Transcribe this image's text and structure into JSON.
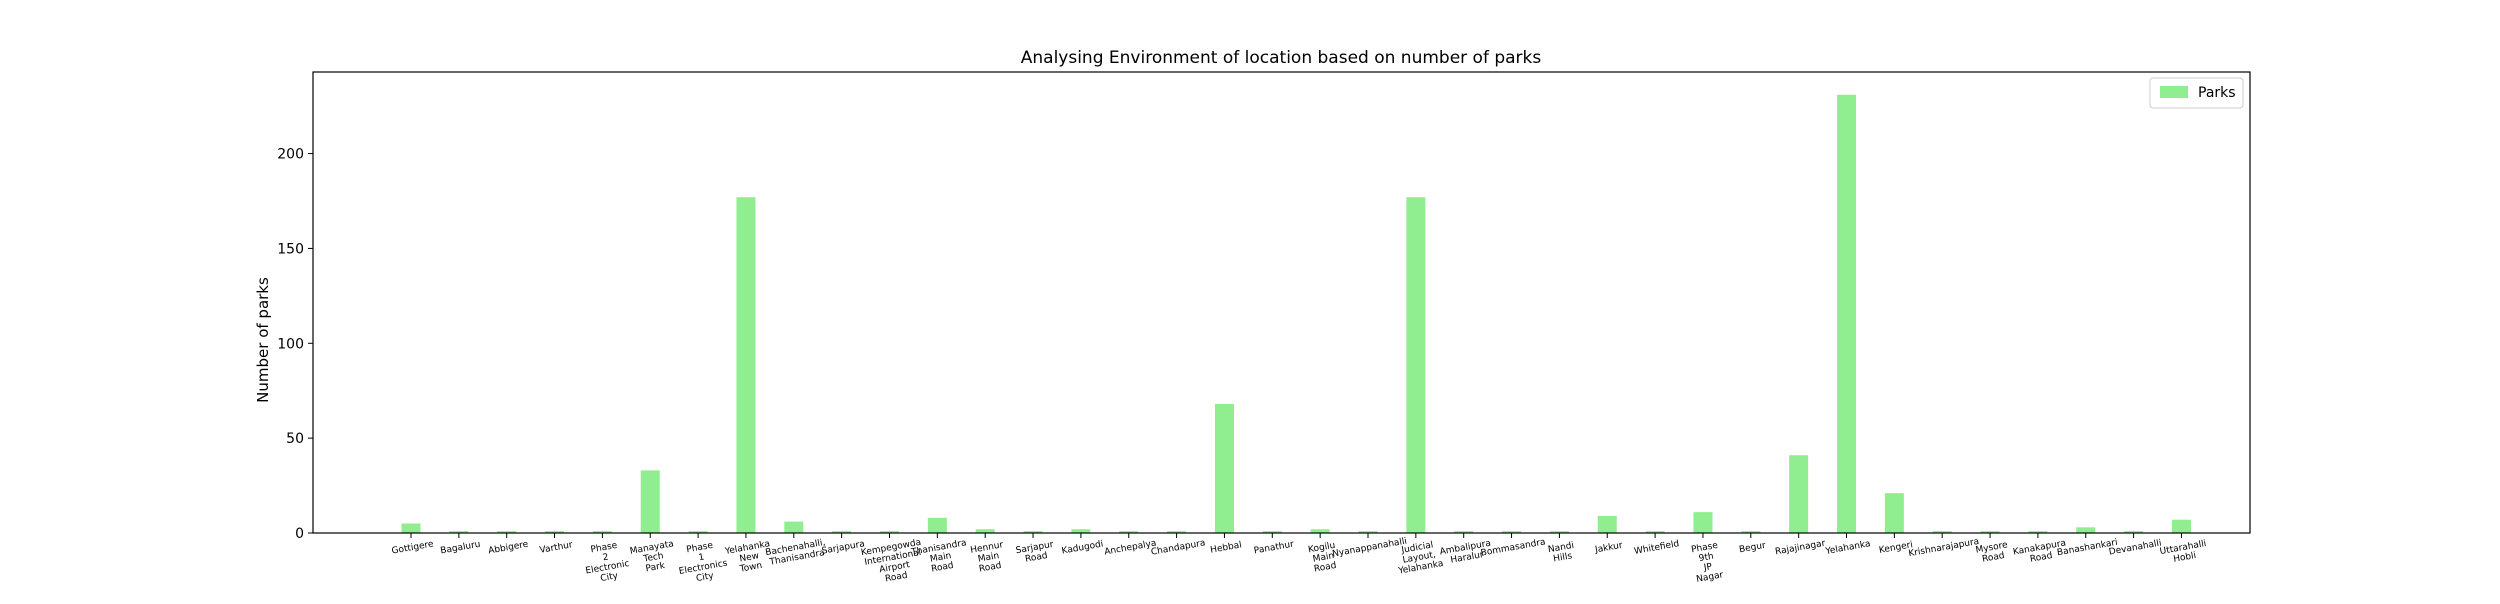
{
  "chart_data": {
    "type": "bar",
    "title": "Analysing Environment of location based on number of parks",
    "xlabel": "",
    "ylabel": "Number of parks",
    "ylim": [
      0,
      243
    ],
    "yticks": [
      0,
      50,
      100,
      150,
      200
    ],
    "grid": false,
    "legend_position": "top-right",
    "bar_color": "#90ee90",
    "categories": [
      "Gottigere",
      "Bagaluru",
      "Abbigere",
      "Varthur",
      "Phase\n2\nElectronic\nCity",
      "Manayata\nTech\nPark",
      "Phase\n1\nElectronics\nCity",
      "Yelahanka\nNew\nTown",
      "Bachenahalli,\nThanisandra",
      "Sarjapura",
      "Kempegowda\nInternational\nAirport\nRoad",
      "Thanisandra\nMain\nRoad",
      "Hennur\nMain\nRoad",
      "Sarjapur\nRoad",
      "Kadugodi",
      "Anchepalya",
      "Chandapura",
      "Hebbal",
      "Panathur",
      "Kogilu\nMain\nRoad",
      "Nyanappanahalli",
      "Judicial\nLayout,\nYelahanka",
      "Ambalipura\nHaralur",
      "Bommasandra",
      "Nandi\nHills",
      "Jakkur",
      "Whitefield",
      "Phase\n9th\nJP\nNagar",
      "Begur",
      "Rajajinagar",
      "Yelahanka",
      "Kengeri",
      "Krishnarajapura",
      "Mysore\nRoad",
      "Kanakapura\nRoad",
      "Banashankari",
      "Devanahalli",
      "Uttarahalli\nHobli"
    ],
    "series": [
      {
        "name": "Parks",
        "values": [
          5,
          1,
          1,
          1,
          1,
          33,
          1,
          177,
          6,
          1,
          1,
          8,
          2,
          1,
          2,
          1,
          1,
          68,
          1,
          2,
          1,
          177,
          1,
          1,
          1,
          9,
          1,
          11,
          1,
          41,
          231,
          21,
          1,
          1,
          1,
          3,
          1,
          7
        ]
      }
    ]
  }
}
